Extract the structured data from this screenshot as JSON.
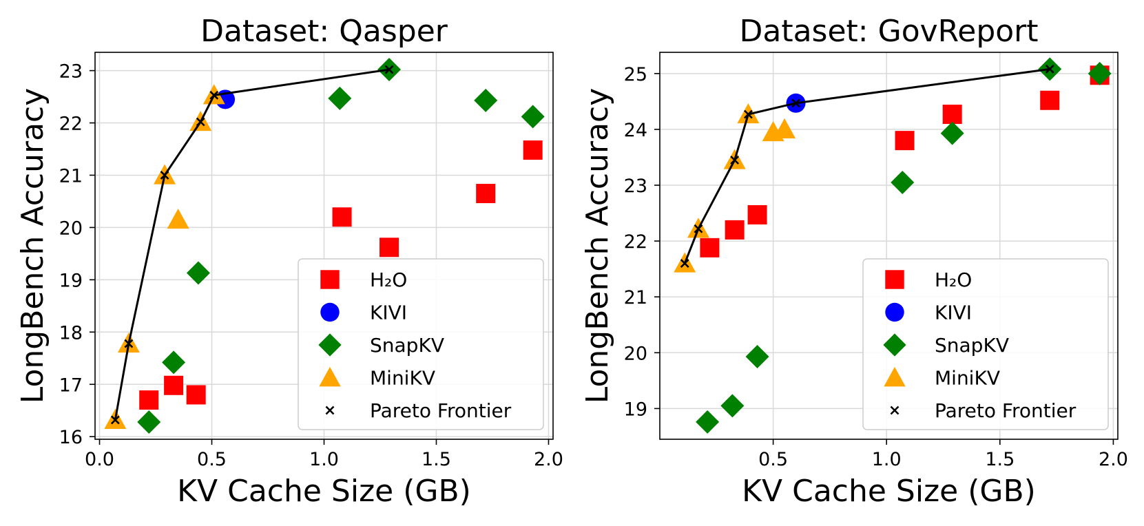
{
  "chart_data": [
    {
      "type": "scatter",
      "title": "Dataset: Qasper",
      "xlabel": "KV Cache Size (GB)",
      "ylabel": "LongBench Accuracy",
      "xlim": [
        -0.02,
        2.02
      ],
      "ylim": [
        15.95,
        23.35
      ],
      "xticks": [
        0.0,
        0.5,
        1.0,
        1.5,
        2.0
      ],
      "xtick_labels": [
        "0.0",
        "0.5",
        "1.0",
        "1.5",
        "2.0"
      ],
      "yticks": [
        16,
        17,
        18,
        19,
        20,
        21,
        22,
        23
      ],
      "ytick_labels": [
        "16",
        "17",
        "18",
        "19",
        "20",
        "21",
        "22",
        "23"
      ],
      "grid": true,
      "legend_position": "lower-right",
      "series": [
        {
          "name": "H₂O",
          "marker": "square",
          "color": "#ff0000",
          "points": [
            [
              0.22,
              16.7
            ],
            [
              0.33,
              16.98
            ],
            [
              0.43,
              16.8
            ],
            [
              1.08,
              20.2
            ],
            [
              1.29,
              19.62
            ],
            [
              1.72,
              20.65
            ],
            [
              1.93,
              21.48
            ]
          ]
        },
        {
          "name": "KIVI",
          "marker": "circle",
          "color": "#0000ff",
          "points": [
            [
              0.56,
              22.45
            ]
          ]
        },
        {
          "name": "SnapKV",
          "marker": "diamond",
          "color": "#008000",
          "points": [
            [
              0.22,
              16.28
            ],
            [
              0.33,
              17.42
            ],
            [
              0.44,
              19.13
            ],
            [
              1.07,
              22.47
            ],
            [
              1.29,
              23.02
            ],
            [
              1.72,
              22.43
            ],
            [
              1.93,
              22.12
            ]
          ]
        },
        {
          "name": "MiniKV",
          "marker": "triangle",
          "color": "#ffa500",
          "points": [
            [
              0.07,
              16.32
            ],
            [
              0.13,
              17.78
            ],
            [
              0.29,
              21.0
            ],
            [
              0.35,
              20.15
            ],
            [
              0.45,
              22.02
            ],
            [
              0.51,
              22.53
            ]
          ]
        },
        {
          "name": "Pareto Frontier",
          "marker": "x",
          "color": "#000000",
          "line": true,
          "points": [
            [
              0.07,
              16.32
            ],
            [
              0.13,
              17.78
            ],
            [
              0.29,
              21.0
            ],
            [
              0.45,
              22.02
            ],
            [
              0.51,
              22.53
            ],
            [
              1.29,
              23.02
            ]
          ]
        }
      ]
    },
    {
      "type": "scatter",
      "title": "Dataset: GovReport",
      "xlabel": "KV Cache Size (GB)",
      "ylabel": "LongBench Accuracy",
      "xlim": [
        0.0,
        2.02
      ],
      "ylim": [
        18.45,
        25.38
      ],
      "xticks": [
        0.5,
        1.0,
        1.5,
        2.0
      ],
      "xtick_labels": [
        "0.5",
        "1.0",
        "1.5",
        "2.0"
      ],
      "yticks": [
        19,
        20,
        21,
        22,
        23,
        24,
        25
      ],
      "ytick_labels": [
        "19",
        "20",
        "21",
        "22",
        "23",
        "24",
        "25"
      ],
      "grid": true,
      "legend_position": "lower-right",
      "series": [
        {
          "name": "H₂O",
          "marker": "square",
          "color": "#ff0000",
          "points": [
            [
              0.22,
              21.88
            ],
            [
              0.33,
              22.2
            ],
            [
              0.43,
              22.47
            ],
            [
              1.08,
              23.8
            ],
            [
              1.29,
              24.27
            ],
            [
              1.72,
              24.52
            ],
            [
              1.94,
              24.97
            ]
          ]
        },
        {
          "name": "KIVI",
          "marker": "circle",
          "color": "#0000ff",
          "points": [
            [
              0.6,
              24.47
            ]
          ]
        },
        {
          "name": "SnapKV",
          "marker": "diamond",
          "color": "#008000",
          "points": [
            [
              0.21,
              18.76
            ],
            [
              0.32,
              19.05
            ],
            [
              0.43,
              19.93
            ],
            [
              1.07,
              23.05
            ],
            [
              1.29,
              23.93
            ],
            [
              1.72,
              25.08
            ],
            [
              1.94,
              25.0
            ]
          ]
        },
        {
          "name": "MiniKV",
          "marker": "triangle",
          "color": "#ffa500",
          "points": [
            [
              0.11,
              21.6
            ],
            [
              0.17,
              22.22
            ],
            [
              0.33,
              23.45
            ],
            [
              0.39,
              24.27
            ],
            [
              0.5,
              23.95
            ],
            [
              0.55,
              24.0
            ]
          ]
        },
        {
          "name": "Pareto Frontier",
          "marker": "x",
          "color": "#000000",
          "line": true,
          "points": [
            [
              0.11,
              21.6
            ],
            [
              0.17,
              22.22
            ],
            [
              0.33,
              23.45
            ],
            [
              0.39,
              24.27
            ],
            [
              0.6,
              24.47
            ],
            [
              1.72,
              25.08
            ]
          ]
        }
      ]
    }
  ]
}
